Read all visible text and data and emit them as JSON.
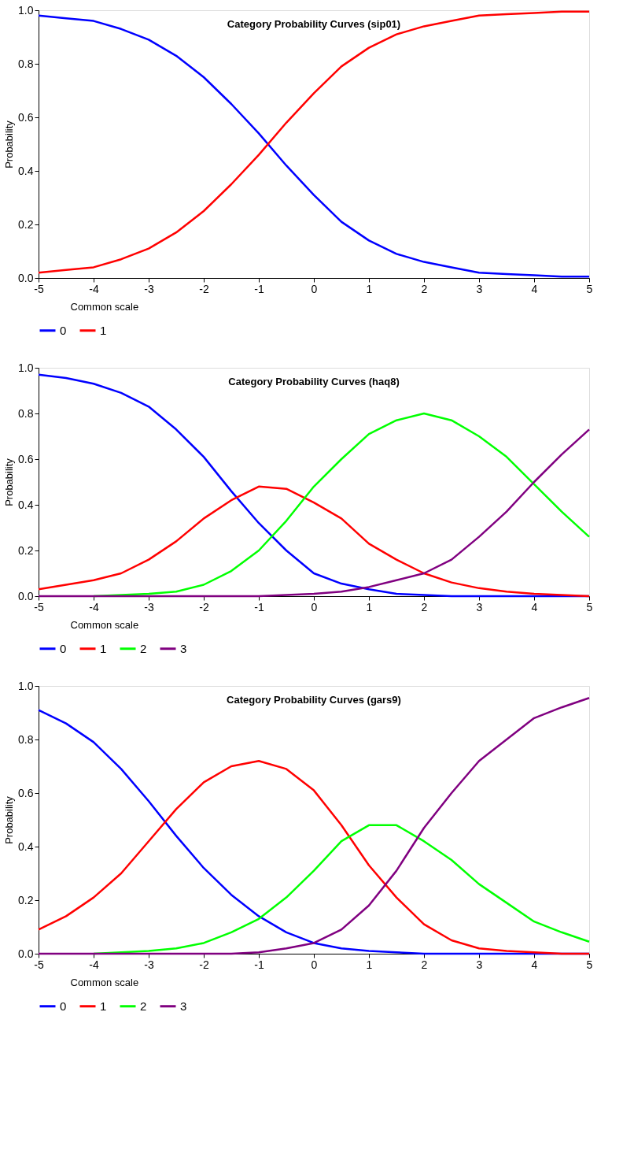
{
  "chart_data": [
    {
      "type": "line",
      "title": "Category Probability Curves (sip01)",
      "xlabel": "Common scale",
      "ylabel": "Probability",
      "x": [
        -5,
        -4.5,
        -4,
        -3.5,
        -3,
        -2.5,
        -2,
        -1.5,
        -1,
        -0.5,
        0,
        0.5,
        1,
        1.5,
        2,
        2.5,
        3,
        3.5,
        4,
        4.5,
        5
      ],
      "series": [
        {
          "name": "0",
          "color": "#0000ff",
          "values": [
            0.98,
            0.97,
            0.96,
            0.93,
            0.89,
            0.83,
            0.75,
            0.65,
            0.54,
            0.42,
            0.31,
            0.21,
            0.14,
            0.09,
            0.06,
            0.04,
            0.02,
            0.015,
            0.01,
            0.005,
            0.005
          ]
        },
        {
          "name": "1",
          "color": "#ff0000",
          "values": [
            0.02,
            0.03,
            0.04,
            0.07,
            0.11,
            0.17,
            0.25,
            0.35,
            0.46,
            0.58,
            0.69,
            0.79,
            0.86,
            0.91,
            0.94,
            0.96,
            0.98,
            0.985,
            0.99,
            0.995,
            0.995
          ]
        }
      ],
      "xlim": [
        -5,
        5
      ],
      "xticks": [
        -5,
        -4,
        -3,
        -2,
        -1,
        0,
        1,
        2,
        3,
        4,
        5
      ],
      "ylim": [
        0,
        1
      ],
      "yticks": [
        {
          "value": 0,
          "label": "0.0"
        },
        {
          "value": 0.2,
          "label": "0.2"
        },
        {
          "value": 0.4,
          "label": "0.4"
        },
        {
          "value": 0.6,
          "label": "0.6"
        },
        {
          "value": 0.8,
          "label": "0.8"
        },
        {
          "value": 1,
          "label": "1.0"
        }
      ],
      "grid": false,
      "legend": "bottom",
      "marker": "none",
      "line_style": "solid"
    },
    {
      "type": "line",
      "title": "Category Probability Curves (haq8)",
      "xlabel": "Common scale",
      "ylabel": "Probability",
      "x": [
        -5,
        -4.5,
        -4,
        -3.5,
        -3,
        -2.5,
        -2,
        -1.5,
        -1,
        -0.5,
        0,
        0.5,
        1,
        1.5,
        2,
        2.5,
        3,
        3.5,
        4,
        4.5,
        5
      ],
      "series": [
        {
          "name": "0",
          "color": "#0000ff",
          "values": [
            0.97,
            0.955,
            0.93,
            0.89,
            0.83,
            0.73,
            0.61,
            0.46,
            0.32,
            0.2,
            0.1,
            0.055,
            0.03,
            0.01,
            0.005,
            0,
            0,
            0,
            0,
            0,
            0
          ]
        },
        {
          "name": "1",
          "color": "#ff0000",
          "values": [
            0.03,
            0.05,
            0.07,
            0.1,
            0.16,
            0.24,
            0.34,
            0.42,
            0.48,
            0.47,
            0.41,
            0.34,
            0.23,
            0.16,
            0.1,
            0.06,
            0.035,
            0.02,
            0.01,
            0.005,
            0
          ]
        },
        {
          "name": "2",
          "color": "#00ff00",
          "values": [
            null,
            null,
            0,
            0.005,
            0.01,
            0.02,
            0.05,
            0.11,
            0.2,
            0.33,
            0.48,
            0.6,
            0.71,
            0.77,
            0.8,
            0.77,
            0.7,
            0.61,
            0.49,
            0.37,
            0.26
          ]
        },
        {
          "name": "3",
          "color": "#800080",
          "values": [
            0,
            0,
            0,
            0,
            0,
            0,
            0,
            0,
            0,
            0.005,
            0.01,
            0.02,
            0.04,
            0.07,
            0.1,
            0.16,
            0.26,
            0.37,
            0.5,
            0.62,
            0.73
          ]
        }
      ],
      "xlim": [
        -5,
        5
      ],
      "xticks": [
        -5,
        -4,
        -3,
        -2,
        -1,
        0,
        1,
        2,
        3,
        4,
        5
      ],
      "ylim": [
        0,
        1
      ],
      "yticks": [
        {
          "value": 0,
          "label": "0.0"
        },
        {
          "value": 0.2,
          "label": "0.2"
        },
        {
          "value": 0.4,
          "label": "0.4"
        },
        {
          "value": 0.6,
          "label": "0.6"
        },
        {
          "value": 0.8,
          "label": "0.8"
        },
        {
          "value": 1,
          "label": "1.0"
        }
      ],
      "grid": false,
      "legend": "bottom",
      "marker": "none",
      "line_style": "solid"
    },
    {
      "type": "line",
      "title": "Category Probability Curves (gars9)",
      "xlabel": "Common scale",
      "ylabel": "Probability",
      "x": [
        -5,
        -4.5,
        -4,
        -3.5,
        -3,
        -2.5,
        -2,
        -1.5,
        -1,
        -0.5,
        0,
        0.5,
        1,
        1.5,
        2,
        2.5,
        3,
        3.5,
        4,
        4.5,
        5
      ],
      "series": [
        {
          "name": "0",
          "color": "#0000ff",
          "values": [
            0.91,
            0.86,
            0.79,
            0.69,
            0.57,
            0.44,
            0.32,
            0.22,
            0.14,
            0.08,
            0.04,
            0.02,
            0.01,
            0.005,
            0,
            0,
            0,
            0,
            0,
            0,
            0
          ]
        },
        {
          "name": "1",
          "color": "#ff0000",
          "values": [
            0.09,
            0.14,
            0.21,
            0.3,
            0.42,
            0.54,
            0.64,
            0.7,
            0.72,
            0.69,
            0.61,
            0.48,
            0.33,
            0.21,
            0.11,
            0.05,
            0.02,
            0.01,
            0.005,
            0,
            0
          ]
        },
        {
          "name": "2",
          "color": "#00ff00",
          "values": [
            null,
            null,
            0,
            0.005,
            0.01,
            0.02,
            0.04,
            0.08,
            0.13,
            0.21,
            0.31,
            0.42,
            0.48,
            0.48,
            0.42,
            0.35,
            0.26,
            0.19,
            0.12,
            0.08,
            0.045
          ]
        },
        {
          "name": "3",
          "color": "#800080",
          "values": [
            0,
            0,
            0,
            0,
            0,
            0,
            0,
            0,
            0.005,
            0.02,
            0.04,
            0.09,
            0.18,
            0.31,
            0.47,
            0.6,
            0.72,
            0.8,
            0.88,
            0.92,
            0.955
          ]
        }
      ],
      "xlim": [
        -5,
        5
      ],
      "xticks": [
        -5,
        -4,
        -3,
        -2,
        -1,
        0,
        1,
        2,
        3,
        4,
        5
      ],
      "ylim": [
        0,
        1
      ],
      "yticks": [
        {
          "value": 0,
          "label": "0.0"
        },
        {
          "value": 0.2,
          "label": "0.2"
        },
        {
          "value": 0.4,
          "label": "0.4"
        },
        {
          "value": 0.6,
          "label": "0.6"
        },
        {
          "value": 0.8,
          "label": "0.8"
        },
        {
          "value": 1,
          "label": "1.0"
        }
      ],
      "grid": false,
      "legend": "bottom",
      "marker": "none",
      "line_style": "solid"
    }
  ]
}
